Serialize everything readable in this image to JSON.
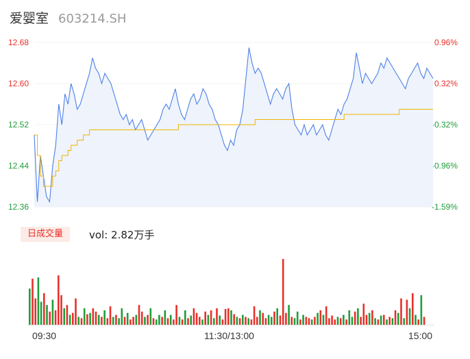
{
  "header": {
    "name": "爱婴室",
    "code": "603214.SH"
  },
  "colors": {
    "up": "#e8302a",
    "down": "#1f9d3a",
    "price_line": "#4d7fe6",
    "avg_line": "#f0b400",
    "fill": "#eef3fc"
  },
  "chart_data": [
    {
      "type": "line",
      "subtype": "intraday-minute",
      "prev_close": 12.56,
      "ylim": [
        12.36,
        12.68
      ],
      "y_ticks": [
        "12.68",
        "12.60",
        "12.52",
        "12.44",
        "12.36"
      ],
      "pct_ticks": [
        "0.96%",
        "0.32%",
        "-0.32%",
        "-0.96%",
        "-1.59%"
      ],
      "series": [
        {
          "key": "price",
          "values": [
            12.5,
            12.37,
            12.46,
            12.42,
            12.38,
            12.37,
            12.44,
            12.48,
            12.56,
            12.52,
            12.58,
            12.56,
            12.6,
            12.58,
            12.55,
            12.56,
            12.58,
            12.6,
            12.62,
            12.65,
            12.63,
            12.62,
            12.6,
            12.62,
            12.61,
            12.6,
            12.58,
            12.56,
            12.54,
            12.53,
            12.54,
            12.52,
            12.53,
            12.51,
            12.52,
            12.53,
            12.51,
            12.49,
            12.5,
            12.51,
            12.52,
            12.53,
            12.55,
            12.56,
            12.55,
            12.57,
            12.59,
            12.56,
            12.54,
            12.53,
            12.55,
            12.57,
            12.58,
            12.56,
            12.57,
            12.59,
            12.58,
            12.56,
            12.55,
            12.53,
            12.52,
            12.5,
            12.48,
            12.47,
            12.49,
            12.48,
            12.51,
            12.52,
            12.55,
            12.61,
            12.67,
            12.64,
            12.62,
            12.63,
            12.62,
            12.6,
            12.58,
            12.56,
            12.58,
            12.59,
            12.58,
            12.57,
            12.59,
            12.6,
            12.55,
            12.52,
            12.51,
            12.5,
            12.52,
            12.5,
            12.51,
            12.52,
            12.5,
            12.51,
            12.52,
            12.5,
            12.49,
            12.51,
            12.53,
            12.55,
            12.54,
            12.56,
            12.57,
            12.59,
            12.61,
            12.66,
            12.63,
            12.6,
            12.62,
            12.61,
            12.6,
            12.61,
            12.62,
            12.64,
            12.63,
            12.65,
            12.64,
            12.63,
            12.62,
            12.61,
            12.6,
            12.59,
            12.61,
            12.62,
            12.63,
            12.64,
            12.62,
            12.61,
            12.63,
            12.62,
            12.61
          ]
        },
        {
          "key": "avg",
          "values": [
            12.5,
            12.46,
            12.42,
            12.4,
            12.4,
            12.4,
            12.42,
            12.43,
            12.45,
            12.46,
            12.46,
            12.47,
            12.48,
            12.48,
            12.49,
            12.49,
            12.5,
            12.5,
            12.51,
            12.51,
            12.51,
            12.51,
            12.51,
            12.51,
            12.51,
            12.51,
            12.51,
            12.51,
            12.51,
            12.51,
            12.51,
            12.51,
            12.51,
            12.51,
            12.51,
            12.51,
            12.51,
            12.51,
            12.51,
            12.51,
            12.51,
            12.51,
            12.51,
            12.51,
            12.51,
            12.51,
            12.51,
            12.52,
            12.52,
            12.52,
            12.52,
            12.52,
            12.52,
            12.52,
            12.52,
            12.52,
            12.52,
            12.52,
            12.52,
            12.52,
            12.52,
            12.52,
            12.52,
            12.52,
            12.52,
            12.52,
            12.52,
            12.52,
            12.52,
            12.52,
            12.52,
            12.52,
            12.53,
            12.53,
            12.53,
            12.53,
            12.53,
            12.53,
            12.53,
            12.53,
            12.53,
            12.53,
            12.53,
            12.53,
            12.53,
            12.53,
            12.53,
            12.53,
            12.53,
            12.53,
            12.53,
            12.53,
            12.53,
            12.53,
            12.53,
            12.53,
            12.53,
            12.53,
            12.53,
            12.53,
            12.53,
            12.54,
            12.54,
            12.54,
            12.54,
            12.54,
            12.54,
            12.54,
            12.54,
            12.54,
            12.54,
            12.54,
            12.54,
            12.54,
            12.54,
            12.54,
            12.54,
            12.54,
            12.54,
            12.55,
            12.55,
            12.55,
            12.55,
            12.55,
            12.55,
            12.55,
            12.55,
            12.55,
            12.55,
            12.55,
            12.55
          ]
        }
      ]
    },
    {
      "type": "bar",
      "legend": "日成交量",
      "vol_label": "vol: 2.82万手",
      "x_ticks": [
        "09:30",
        "11:30/13:00",
        "15:00"
      ],
      "ylim": [
        0,
        100
      ],
      "values": [
        55,
        70,
        40,
        72,
        35,
        48,
        30,
        20,
        38,
        22,
        75,
        45,
        25,
        30,
        15,
        18,
        40,
        12,
        10,
        25,
        16,
        18,
        25,
        20,
        15,
        12,
        22,
        10,
        28,
        12,
        15,
        10,
        25,
        12,
        18,
        8,
        12,
        15,
        30,
        20,
        12,
        15,
        25,
        10,
        8,
        15,
        12,
        22,
        10,
        15,
        8,
        30,
        12,
        8,
        22,
        10,
        14,
        25,
        18,
        12,
        8,
        20,
        15,
        22,
        10,
        25,
        14,
        8,
        24,
        25,
        22,
        16,
        12,
        10,
        15,
        12,
        10,
        8,
        28,
        12,
        22,
        18,
        10,
        15,
        12,
        20,
        25,
        14,
        100,
        18,
        30,
        12,
        10,
        20,
        8,
        15,
        12,
        10,
        8,
        12,
        18,
        22,
        15,
        28,
        10,
        14,
        8,
        12,
        10,
        15,
        8,
        22,
        12,
        20,
        25,
        12,
        32,
        15,
        18,
        22,
        10,
        8,
        14,
        15,
        8,
        12,
        10,
        22,
        18,
        40,
        10,
        38,
        25,
        48,
        15,
        8,
        45,
        12
      ],
      "directions": [
        "d",
        "u",
        "u",
        "d",
        "d",
        "u",
        "d",
        "u",
        "d",
        "u",
        "u",
        "u",
        "d",
        "u",
        "d",
        "u",
        "u",
        "d",
        "u",
        "d",
        "u",
        "d",
        "u",
        "u",
        "d",
        "u",
        "d",
        "u",
        "u",
        "d",
        "u",
        "d",
        "d",
        "u",
        "d",
        "u",
        "u",
        "d",
        "u",
        "u",
        "d",
        "u",
        "d",
        "u",
        "d",
        "d",
        "u",
        "d",
        "u",
        "d",
        "u",
        "u",
        "d",
        "u",
        "d",
        "u",
        "d",
        "u",
        "u",
        "u",
        "d",
        "u",
        "d",
        "u",
        "d",
        "u",
        "d",
        "u",
        "u",
        "u",
        "d",
        "u",
        "d",
        "u",
        "d",
        "u",
        "d",
        "u",
        "u",
        "u",
        "d",
        "u",
        "u",
        "d",
        "d",
        "u",
        "d",
        "u",
        "u",
        "u",
        "d",
        "u",
        "d",
        "d",
        "u",
        "d",
        "u",
        "u",
        "d",
        "u",
        "d",
        "u",
        "d",
        "u",
        "u",
        "u",
        "u",
        "d",
        "u",
        "d",
        "u",
        "d",
        "d",
        "u",
        "d",
        "u",
        "u",
        "u",
        "d",
        "u",
        "d",
        "u",
        "d",
        "u",
        "d",
        "u",
        "d",
        "u",
        "d",
        "u",
        "d",
        "u",
        "d",
        "u",
        "d",
        "u",
        "d",
        "u",
        "d",
        "u"
      ]
    }
  ]
}
